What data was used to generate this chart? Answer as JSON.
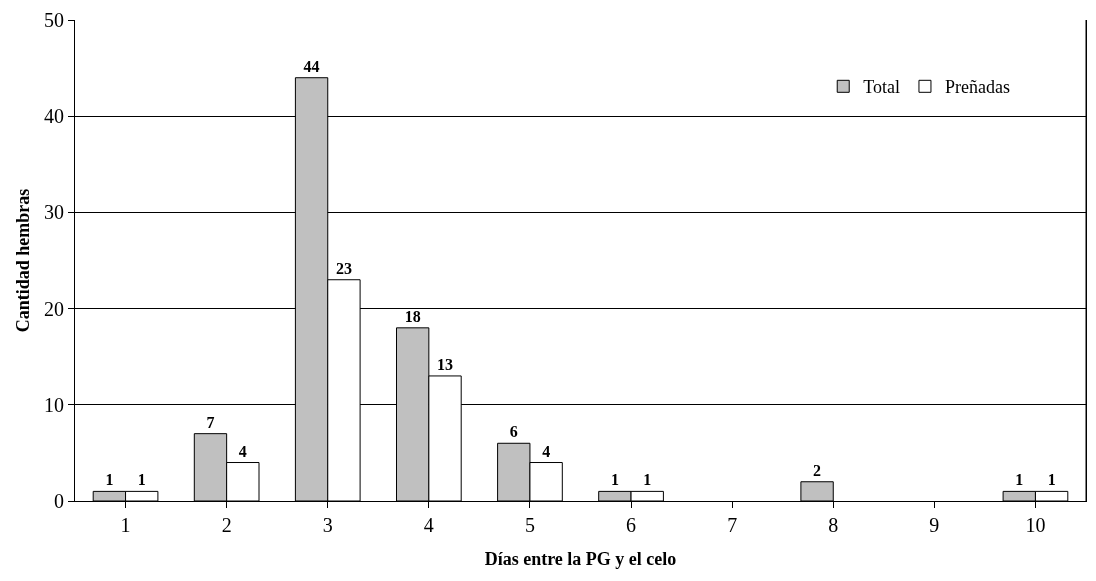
{
  "chart_data": {
    "type": "bar",
    "xlabel": "Días entre la PG y el celo",
    "ylabel": "Cantidad hembras",
    "categories": [
      "1",
      "2",
      "3",
      "4",
      "5",
      "6",
      "7",
      "8",
      "9",
      "10"
    ],
    "series": [
      {
        "name": "Total",
        "color": "#c0c0c0",
        "values": [
          1,
          7,
          44,
          18,
          6,
          1,
          null,
          2,
          null,
          1
        ]
      },
      {
        "name": "Preñadas",
        "color": "#ffffff",
        "values": [
          1,
          4,
          23,
          13,
          4,
          1,
          null,
          null,
          null,
          1
        ]
      }
    ],
    "ylim": [
      0,
      50
    ],
    "yticks": [
      0,
      10,
      20,
      30,
      40,
      50
    ],
    "grid": "y",
    "legend": "top right",
    "data_labels": true
  }
}
